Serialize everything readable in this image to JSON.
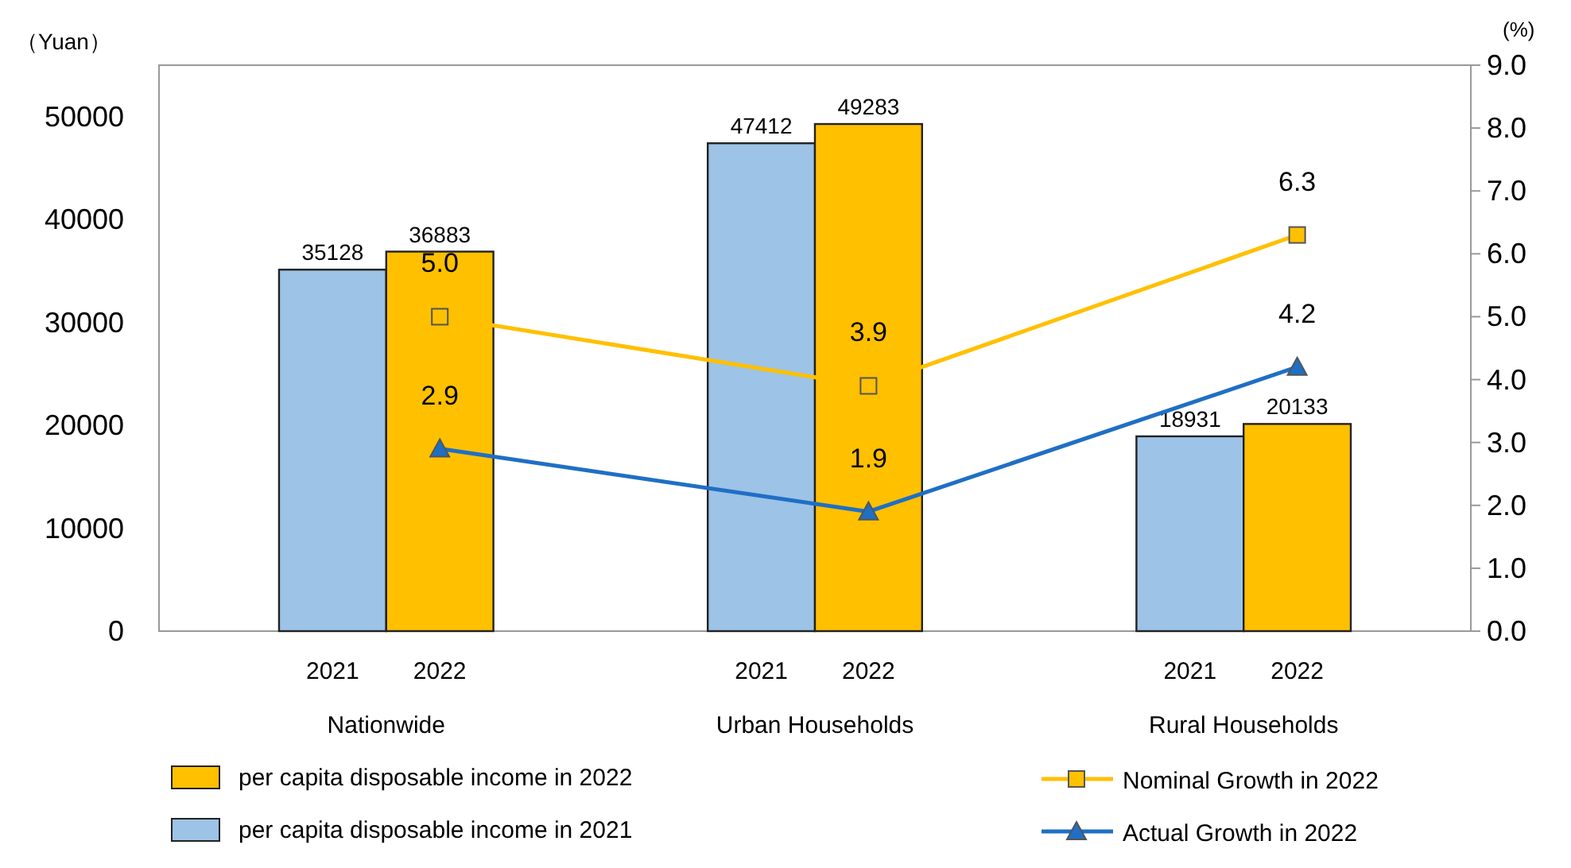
{
  "chart_data": {
    "type": "bar",
    "ylabel": "（Yuan）",
    "y2label": "(%)",
    "categories": [
      "Nationwide",
      "Urban Households",
      "Rural Households"
    ],
    "series": [
      {
        "name": "per capita disposable income in 2021",
        "color": "#9dc3e6",
        "values": [
          35128,
          47412,
          18931
        ]
      },
      {
        "name": "per capita disposable income in 2022",
        "color": "#ffc000",
        "values": [
          36883,
          49283,
          20133
        ]
      },
      {
        "name": "Nominal Growth in 2022",
        "type": "line",
        "axis": "y2",
        "color": "#ffc000",
        "marker": "square",
        "values": [
          5.0,
          3.9,
          6.3
        ],
        "value_labels": [
          "5.0",
          "3.9",
          "6.3"
        ]
      },
      {
        "name": "Actual Growth in 2022",
        "type": "line",
        "axis": "y2",
        "color": "#1f6fc5",
        "marker": "triangle",
        "values": [
          2.9,
          1.9,
          4.2
        ],
        "value_labels": [
          "2.9",
          "1.9",
          "4.2"
        ]
      }
    ],
    "annotations": [
      "2021",
      "2022",
      "2021",
      "2022",
      "2021",
      "2022"
    ],
    "ylim": [
      0,
      55000
    ],
    "yticks": [
      0,
      10000,
      20000,
      30000,
      40000,
      50000
    ],
    "y2lim": [
      0,
      9
    ],
    "y2ticks": [
      {
        "value": 0,
        "label": "0.0"
      },
      {
        "value": 1,
        "label": "1.0"
      },
      {
        "value": 2,
        "label": "2.0"
      },
      {
        "value": 3,
        "label": "3.0"
      },
      {
        "value": 4,
        "label": "4.0"
      },
      {
        "value": 5,
        "label": "5.0"
      },
      {
        "value": 6,
        "label": "6.0"
      },
      {
        "value": 7,
        "label": "7.0"
      },
      {
        "value": 8,
        "label": "8.0"
      },
      {
        "value": 9,
        "label": "9.0"
      }
    ],
    "data_labels": true,
    "legend": "bottom"
  }
}
